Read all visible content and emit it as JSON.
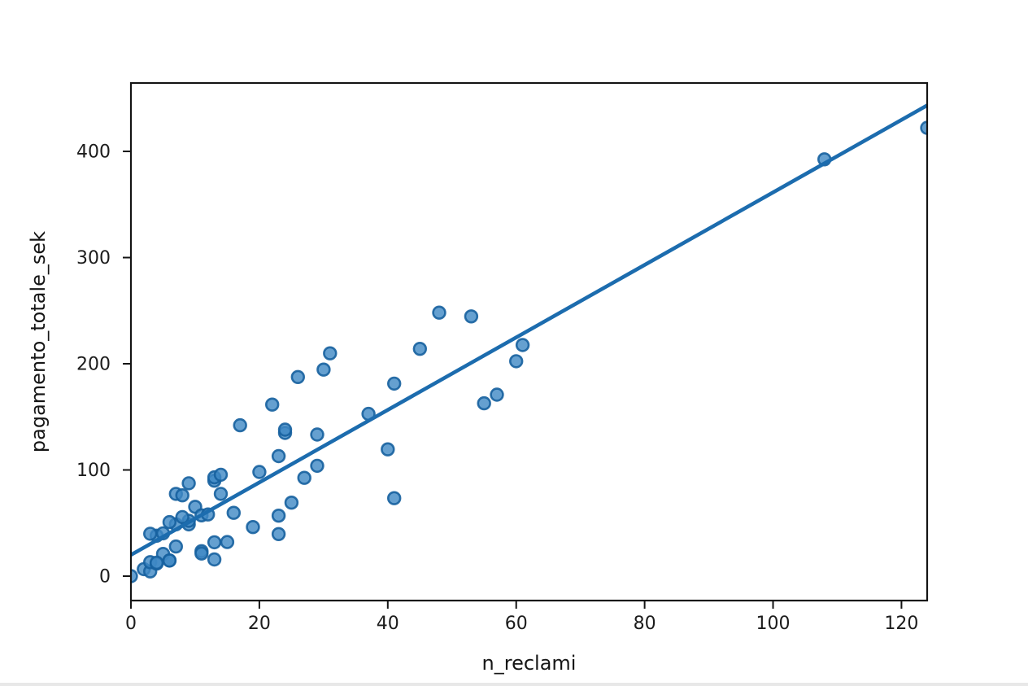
{
  "figure": {
    "background_color": "#ffffff",
    "bottom_strip_color": "#e8e8e8",
    "frame_color": "#141414"
  },
  "chart_data": {
    "type": "scatter",
    "title": "",
    "xlabel": "n_reclami",
    "ylabel": "pagamento_totale_sek",
    "xlim": [
      0,
      124
    ],
    "ylim": [
      -23,
      464.4
    ],
    "x_ticks": [
      0,
      20,
      40,
      60,
      80,
      100,
      120
    ],
    "y_ticks": [
      0,
      100,
      200,
      300,
      400
    ],
    "grid": false,
    "legend_position": "none",
    "marker_fill_color": "#3e88c4",
    "marker_edge_color": "#16609f",
    "line_color": "#1c6cae",
    "points": [
      [
        108,
        392.5
      ],
      [
        19,
        46.2
      ],
      [
        13,
        15.7
      ],
      [
        124,
        422.2
      ],
      [
        40,
        119.4
      ],
      [
        57,
        170.9
      ],
      [
        23,
        56.9
      ],
      [
        14,
        77.5
      ],
      [
        45,
        214.0
      ],
      [
        10,
        65.3
      ],
      [
        5,
        20.9
      ],
      [
        48,
        248.1
      ],
      [
        11,
        23.5
      ],
      [
        23,
        39.6
      ],
      [
        7,
        48.8
      ],
      [
        2,
        6.6
      ],
      [
        24,
        134.9
      ],
      [
        6,
        50.9
      ],
      [
        3,
        4.4
      ],
      [
        23,
        113.0
      ],
      [
        6,
        14.8
      ],
      [
        9,
        48.7
      ],
      [
        9,
        52.1
      ],
      [
        3,
        13.2
      ],
      [
        29,
        103.9
      ],
      [
        7,
        77.5
      ],
      [
        4,
        11.8
      ],
      [
        20,
        98.1
      ],
      [
        7,
        27.9
      ],
      [
        4,
        38.1
      ],
      [
        0,
        0.0
      ],
      [
        25,
        69.2
      ],
      [
        6,
        14.6
      ],
      [
        5,
        40.3
      ],
      [
        22,
        161.5
      ],
      [
        11,
        57.2
      ],
      [
        61,
        217.6
      ],
      [
        12,
        58.1
      ],
      [
        4,
        12.6
      ],
      [
        16,
        59.6
      ],
      [
        13,
        89.9
      ],
      [
        60,
        202.4
      ],
      [
        41,
        181.3
      ],
      [
        37,
        152.8
      ],
      [
        55,
        162.8
      ],
      [
        41,
        73.4
      ],
      [
        11,
        21.3
      ],
      [
        27,
        92.6
      ],
      [
        8,
        76.1
      ],
      [
        3,
        39.9
      ],
      [
        17,
        142.1
      ],
      [
        13,
        93.0
      ],
      [
        13,
        31.9
      ],
      [
        15,
        32.1
      ],
      [
        8,
        55.6
      ],
      [
        29,
        133.3
      ],
      [
        30,
        194.5
      ],
      [
        24,
        137.9
      ],
      [
        9,
        87.4
      ],
      [
        31,
        209.8
      ],
      [
        14,
        95.5
      ],
      [
        53,
        244.6
      ],
      [
        26,
        187.5
      ]
    ],
    "regression_line": {
      "slope": 3.4138,
      "intercept": 19.994,
      "x_start": 0,
      "x_end": 124
    }
  }
}
